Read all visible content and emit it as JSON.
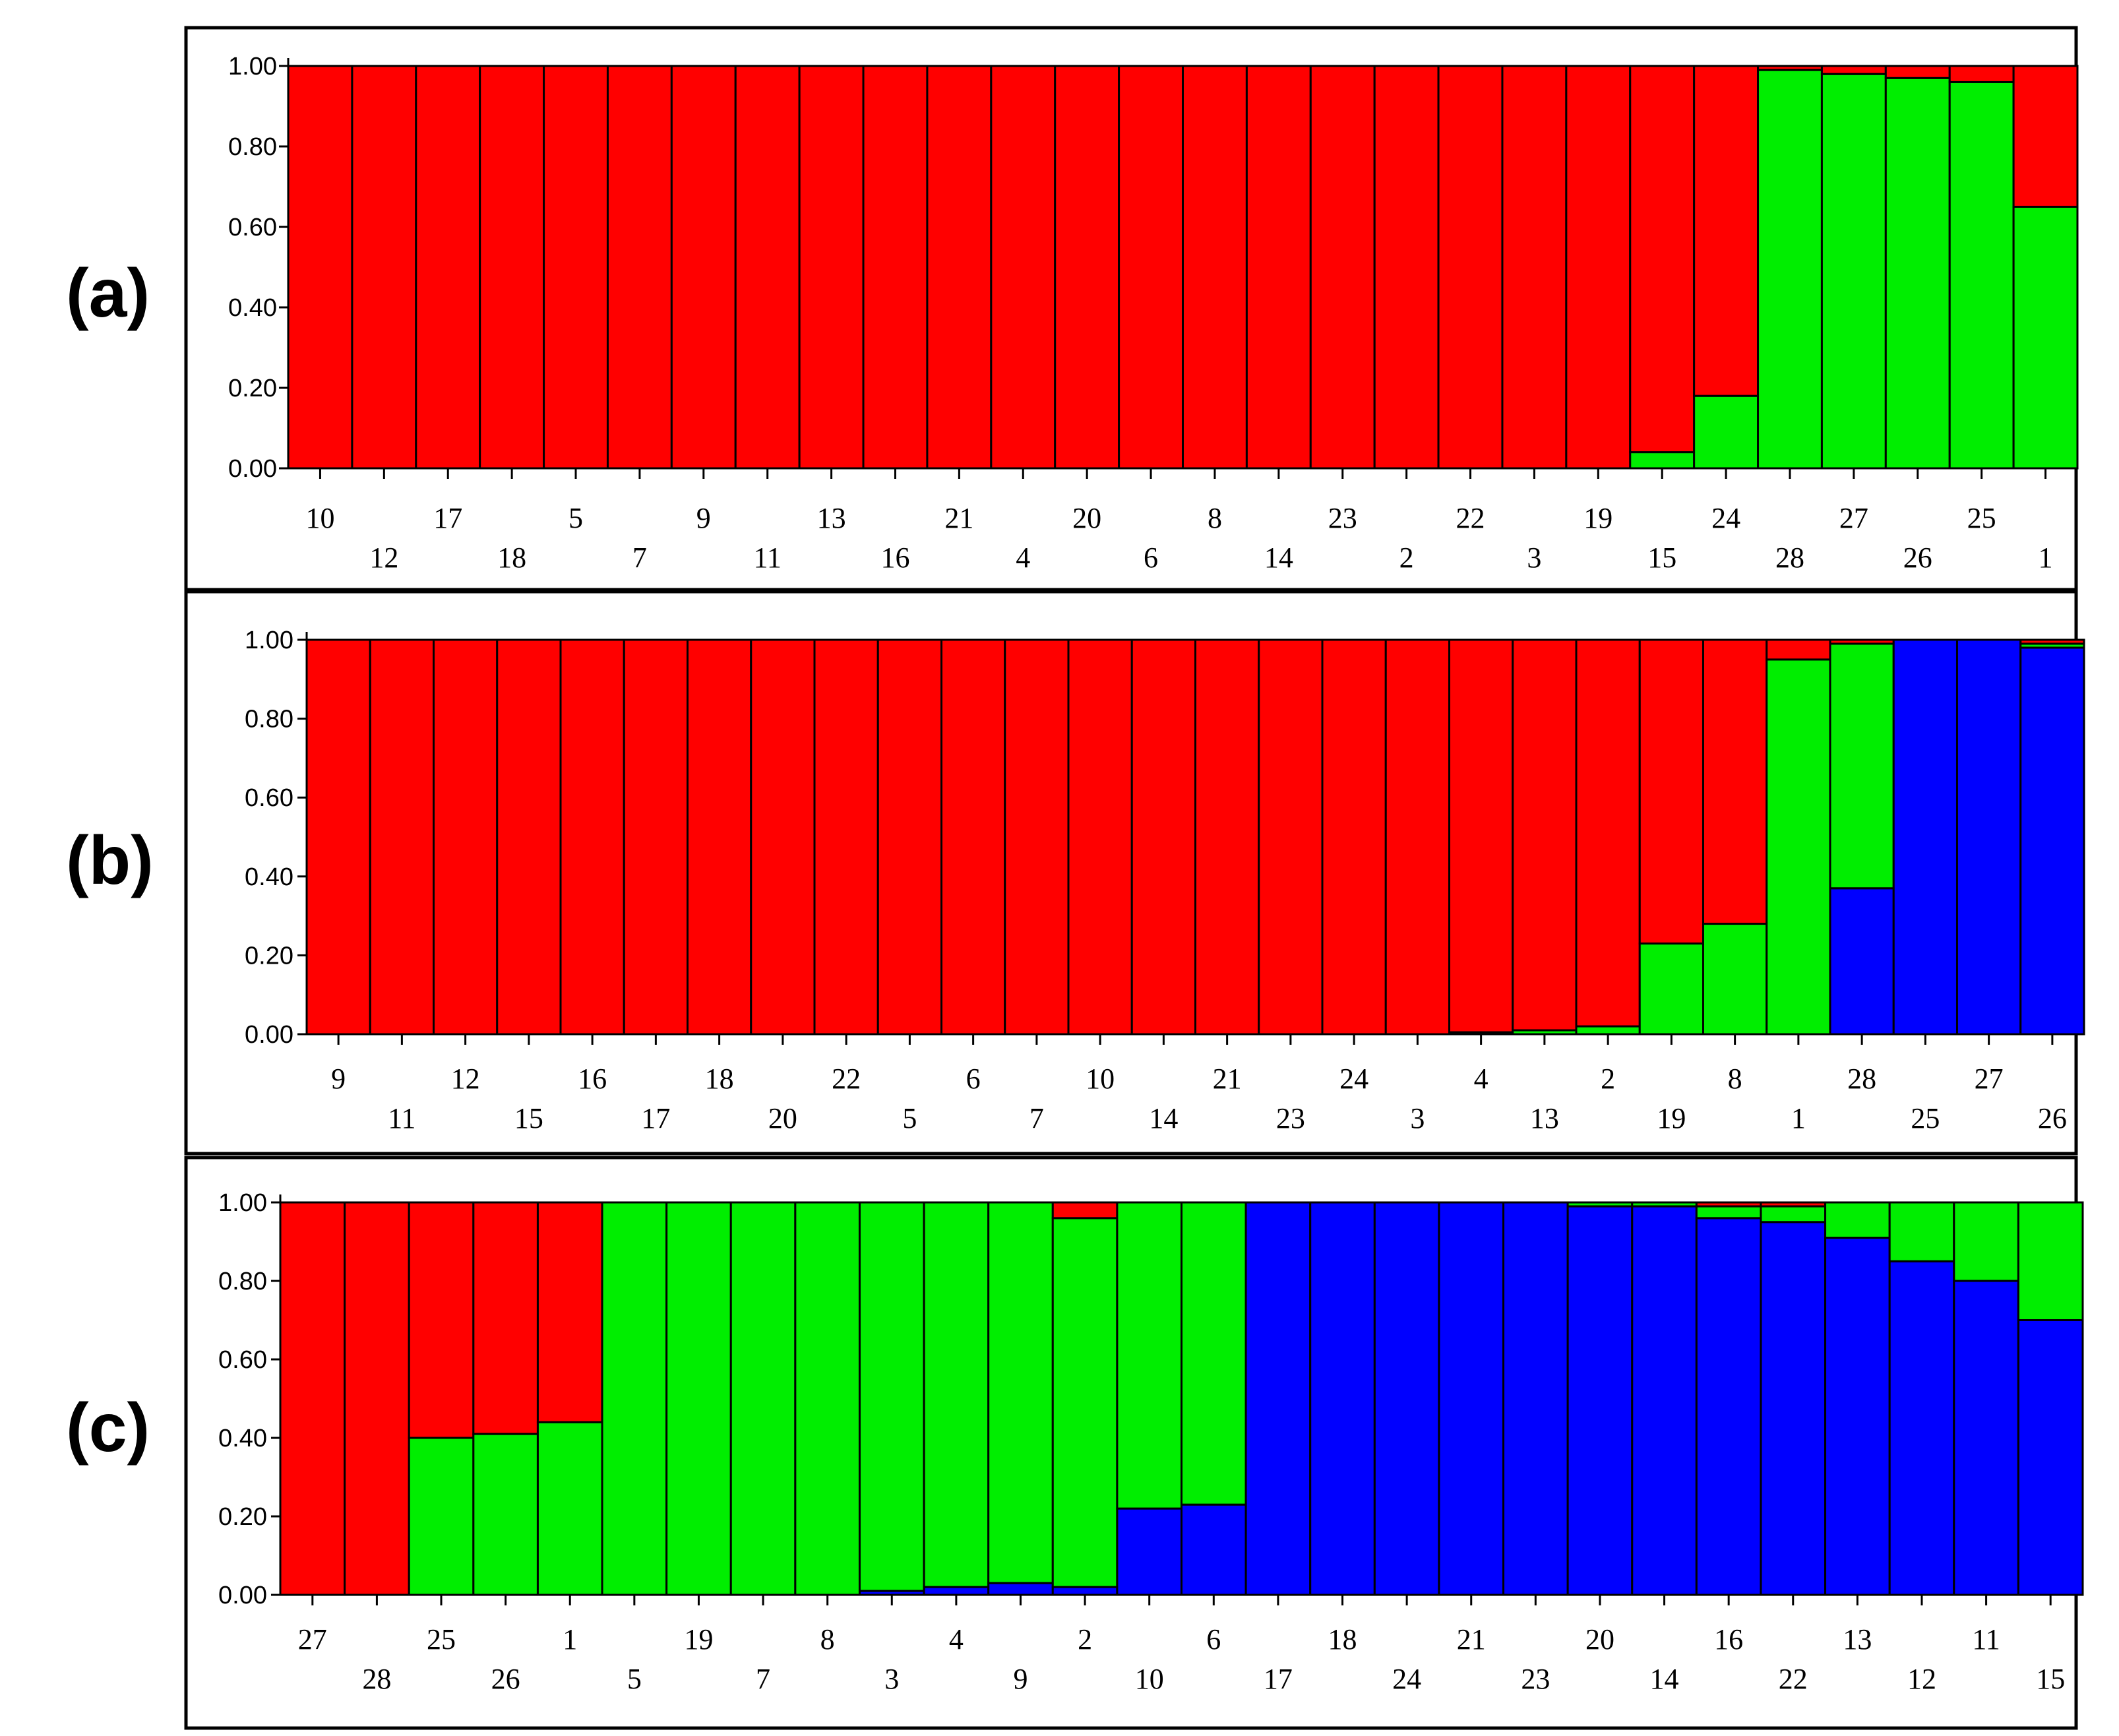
{
  "colors": {
    "red": "#ff0000",
    "green": "#00ee00",
    "blue": "#0000ff"
  },
  "chart_data": [
    {
      "type": "bar",
      "stacked": true,
      "panel_label": "(a)",
      "ylim": [
        0,
        1
      ],
      "yticks": [
        "0.00",
        "0.20",
        "0.40",
        "0.60",
        "0.80",
        "1.00"
      ],
      "categories": [
        "10",
        "12",
        "17",
        "18",
        "5",
        "7",
        "9",
        "11",
        "13",
        "16",
        "21",
        "4",
        "20",
        "6",
        "8",
        "14",
        "23",
        "2",
        "22",
        "3",
        "19",
        "15",
        "24",
        "28",
        "27",
        "26",
        "25",
        "1"
      ],
      "series": [
        {
          "color": "green",
          "values": [
            0,
            0,
            0,
            0,
            0,
            0,
            0,
            0,
            0,
            0,
            0,
            0,
            0,
            0,
            0,
            0,
            0,
            0,
            0,
            0,
            0,
            0.04,
            0.18,
            0.99,
            0.98,
            0.97,
            0.96,
            0.65
          ]
        },
        {
          "color": "red",
          "values": [
            1,
            1,
            1,
            1,
            1,
            1,
            1,
            1,
            1,
            1,
            1,
            1,
            1,
            1,
            1,
            1,
            1,
            1,
            1,
            1,
            1,
            0.96,
            0.82,
            0.01,
            0.02,
            0.03,
            0.04,
            0.35
          ]
        }
      ]
    },
    {
      "type": "bar",
      "stacked": true,
      "panel_label": "(b)",
      "ylim": [
        0,
        1
      ],
      "yticks": [
        "0.00",
        "0.20",
        "0.40",
        "0.60",
        "0.80",
        "1.00"
      ],
      "categories": [
        "9",
        "11",
        "12",
        "15",
        "16",
        "17",
        "18",
        "20",
        "22",
        "5",
        "6",
        "7",
        "10",
        "14",
        "21",
        "23",
        "24",
        "3",
        "4",
        "13",
        "2",
        "19",
        "8",
        "1",
        "28",
        "25",
        "27",
        "26"
      ],
      "series": [
        {
          "color": "blue",
          "values": [
            0,
            0,
            0,
            0,
            0,
            0,
            0,
            0,
            0,
            0,
            0,
            0,
            0,
            0,
            0,
            0,
            0,
            0,
            0,
            0,
            0,
            0,
            0,
            0,
            0.37,
            1,
            1,
            0.98
          ]
        },
        {
          "color": "green",
          "values": [
            0,
            0,
            0,
            0,
            0,
            0,
            0,
            0,
            0,
            0,
            0,
            0,
            0,
            0,
            0,
            0,
            0,
            0,
            0.005,
            0.01,
            0.02,
            0.23,
            0.28,
            0.95,
            0.62,
            0,
            0,
            0.01
          ]
        },
        {
          "color": "red",
          "values": [
            1,
            1,
            1,
            1,
            1,
            1,
            1,
            1,
            1,
            1,
            1,
            1,
            1,
            1,
            1,
            1,
            1,
            1,
            0.995,
            0.99,
            0.98,
            0.77,
            0.72,
            0.05,
            0.01,
            0,
            0,
            0.01
          ]
        }
      ]
    },
    {
      "type": "bar",
      "stacked": true,
      "panel_label": "(c)",
      "ylim": [
        0,
        1
      ],
      "yticks": [
        "0.00",
        "0.20",
        "0.40",
        "0.60",
        "0.80",
        "1.00"
      ],
      "categories": [
        "27",
        "28",
        "25",
        "26",
        "1",
        "5",
        "19",
        "7",
        "8",
        "3",
        "4",
        "9",
        "2",
        "10",
        "6",
        "17",
        "18",
        "24",
        "21",
        "23",
        "20",
        "14",
        "16",
        "22",
        "13",
        "12",
        "11",
        "15"
      ],
      "series": [
        {
          "color": "blue",
          "values": [
            0,
            0,
            0,
            0,
            0,
            0,
            0,
            0,
            0,
            0.01,
            0.02,
            0.03,
            0.02,
            0.22,
            0.23,
            1,
            1,
            1,
            1,
            1,
            0.99,
            0.99,
            0.96,
            0.95,
            0.91,
            0.85,
            0.8,
            0.7
          ]
        },
        {
          "color": "green",
          "values": [
            0,
            0,
            0.4,
            0.41,
            0.44,
            1,
            1,
            1,
            1,
            0.99,
            0.98,
            0.97,
            0.94,
            0.78,
            0.77,
            0,
            0,
            0,
            0,
            0,
            0.01,
            0.01,
            0.03,
            0.04,
            0.09,
            0.15,
            0.2,
            0.3
          ]
        },
        {
          "color": "red",
          "values": [
            1,
            1,
            0.6,
            0.59,
            0.56,
            0,
            0,
            0,
            0,
            0,
            0,
            0,
            0.04,
            0,
            0,
            0,
            0,
            0,
            0,
            0,
            0,
            0,
            0.01,
            0.01,
            0,
            0,
            0,
            0
          ]
        }
      ]
    }
  ]
}
